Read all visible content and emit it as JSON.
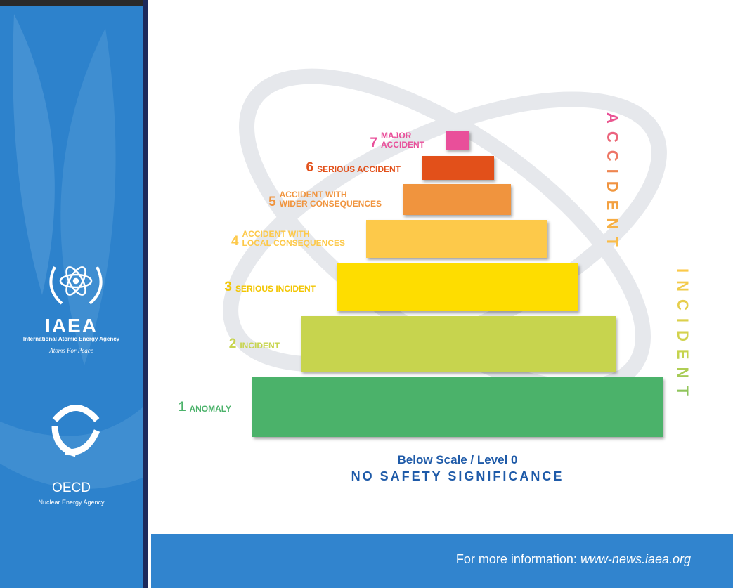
{
  "sidebar": {
    "iaea": "IAEA",
    "iaea_name": "International Atomic Energy Agency",
    "motto": "Atoms For Peace",
    "oecd": "OECD",
    "oecd_name": "Nuclear Energy Agency"
  },
  "scale": {
    "levels": [
      {
        "number": "7",
        "lines": [
          "MAJOR",
          "ACCIDENT"
        ],
        "color": "#e94f9a"
      },
      {
        "number": "6",
        "lines": [
          "SERIOUS ACCIDENT"
        ],
        "color": "#e2501a"
      },
      {
        "number": "5",
        "lines": [
          "ACCIDENT WITH",
          "WIDER CONSEQUENCES"
        ],
        "color": "#f0943e"
      },
      {
        "number": "4",
        "lines": [
          "ACCIDENT WITH",
          "LOCAL CONSEQUENCES"
        ],
        "color": "#fdc94a"
      },
      {
        "number": "3",
        "lines": [
          "SERIOUS INCIDENT"
        ],
        "color": "#fedd00"
      },
      {
        "number": "2",
        "lines": [
          "INCIDENT"
        ],
        "color": "#c7d44e"
      },
      {
        "number": "1",
        "lines": [
          "ANOMALY"
        ],
        "color": "#4bb26a"
      }
    ],
    "accident": "ACCIDENT",
    "incident": "INCIDENT",
    "below_scale": "Below Scale / Level 0",
    "no_significance": "NO SAFETY SIGNIFICANCE"
  },
  "footer": {
    "prefix": "For more information:",
    "url": "www-news.iaea.org"
  }
}
